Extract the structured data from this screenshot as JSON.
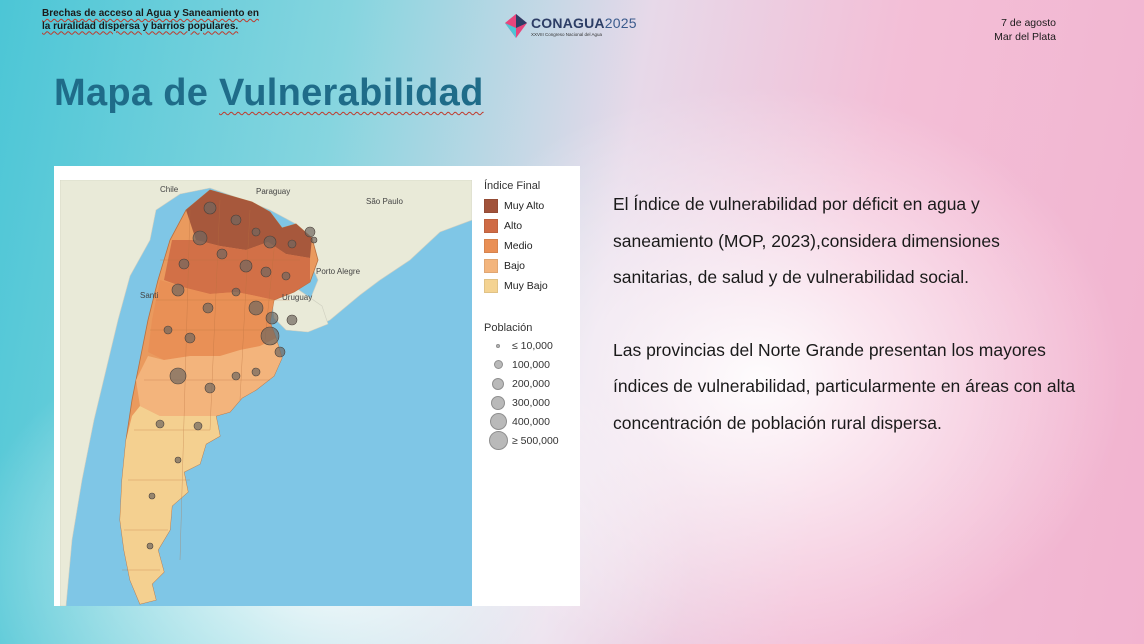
{
  "header": {
    "left_line1": "Brechas de acceso al Agua y Saneamiento  en",
    "left_line2": "la ruralidad dispersa y barrios populares.",
    "logo_name": "CONAGUA",
    "logo_year": "2025",
    "logo_sub": "XXVIII Congreso Nacional del Agua",
    "date": "7 de agosto",
    "place": "Mar del Plata"
  },
  "title": {
    "part1": "Mapa de ",
    "part2": "Vulnerabilidad"
  },
  "map": {
    "place_labels": {
      "chile": "Chile",
      "paraguay": "Paraguay",
      "sao_paulo": "São Paulo",
      "porto_alegre": "Porto Alegre",
      "uruguay": "Uruguay",
      "santiago": "Santi"
    },
    "legend_title": "Índice Final",
    "categories": [
      {
        "label": "Muy Alto",
        "color": "#a1523a"
      },
      {
        "label": "Alto",
        "color": "#cf6b45"
      },
      {
        "label": "Medio",
        "color": "#e98f55"
      },
      {
        "label": "Bajo",
        "color": "#f3b57d"
      },
      {
        "label": "Muy Bajo",
        "color": "#f4d392"
      }
    ],
    "population_title": "Población",
    "population": [
      {
        "label": "≤ 10,000",
        "size": 4
      },
      {
        "label": "100,000",
        "size": 9
      },
      {
        "label": "200,000",
        "size": 12
      },
      {
        "label": "300,000",
        "size": 14
      },
      {
        "label": "400,000",
        "size": 17
      },
      {
        "label": "≥ 500,000",
        "size": 19
      }
    ],
    "colors": {
      "ocean": "#7fc6e6",
      "land_outside": "#e9ead8"
    }
  },
  "body": {
    "paragraph1": "El Índice de vulnerabilidad por déficit en agua y saneamiento (MOP, 2023),considera dimensiones sanitarias, de salud y de vulnerabilidad social.",
    "paragraph2": "Las provincias del Norte Grande presentan los mayores índices de vulnerabilidad, particularmente en áreas con alta concentración de población rural dispersa."
  }
}
